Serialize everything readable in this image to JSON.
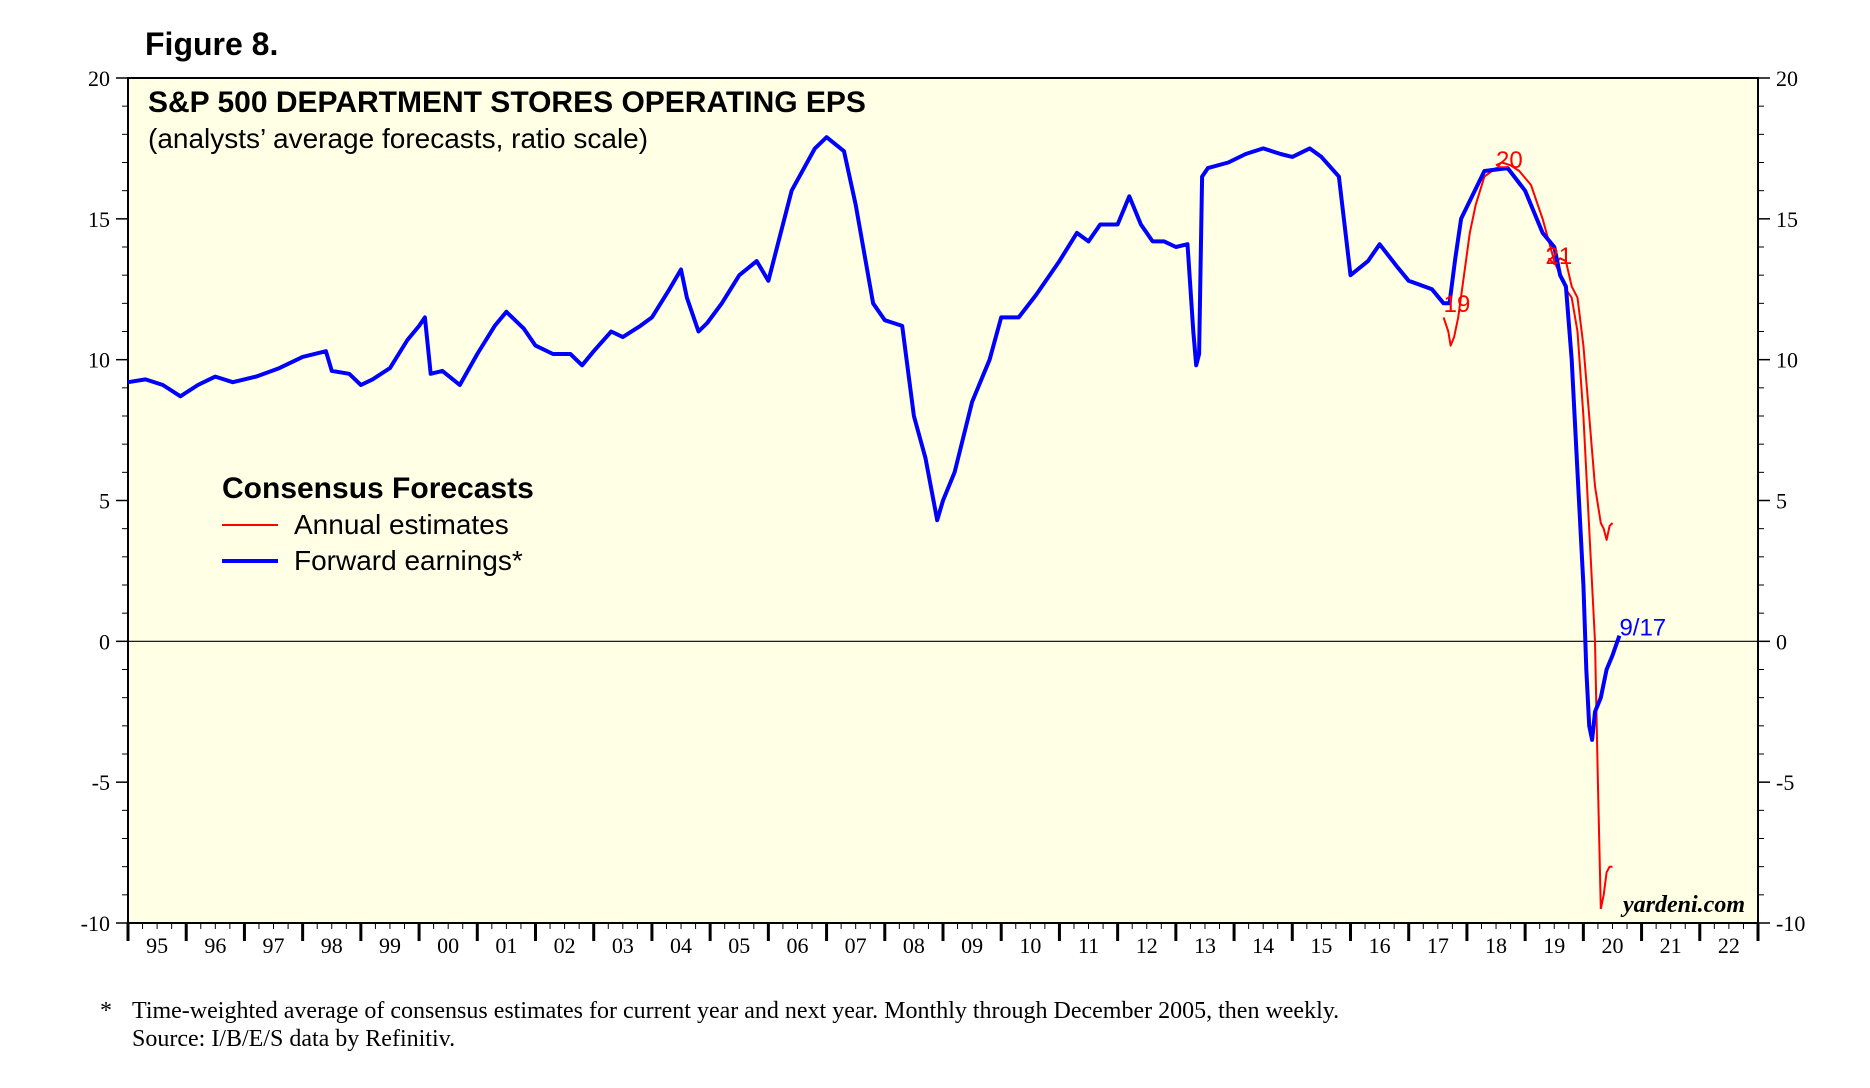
{
  "figure_label": "Figure 8.",
  "footnote": {
    "marker": "*",
    "line1": "Time-weighted average of consensus estimates for current year and next year. Monthly through December 2005, then weekly.",
    "line2": "Source: I/B/E/S data by Refinitiv."
  },
  "watermark": "yardeni.com",
  "colors": {
    "plot_background": "#FFFFE6",
    "annual": "#FF0000",
    "forward": "#0000FF",
    "zero_line": "#000000"
  },
  "chart_data": {
    "type": "line",
    "title": "S&P 500 DEPARTMENT STORES OPERATING EPS",
    "subtitle": "(analysts’ average forecasts, ratio scale)",
    "xlabel": "",
    "ylabel": "",
    "ylim": [
      -10,
      20
    ],
    "yticks": [
      -10,
      -5,
      0,
      5,
      10,
      15,
      20
    ],
    "xlim": [
      1995.0,
      2023.0
    ],
    "xtick_labels": [
      "95",
      "96",
      "97",
      "98",
      "99",
      "00",
      "01",
      "02",
      "03",
      "04",
      "05",
      "06",
      "07",
      "08",
      "09",
      "10",
      "11",
      "12",
      "13",
      "14",
      "15",
      "16",
      "17",
      "18",
      "19",
      "20",
      "21",
      "22"
    ],
    "grid": false,
    "legend": {
      "title": "Consensus Forecasts",
      "placement": "middle-left",
      "entries": [
        "Annual estimates",
        "Forward earnings*"
      ]
    },
    "annotations": [
      {
        "text": "19",
        "x": 2017.6,
        "y": 11.7,
        "color": "#FF0000"
      },
      {
        "text": "20",
        "x": 2018.5,
        "y": 16.8,
        "color": "#FF0000"
      },
      {
        "text": "21",
        "x": 2019.35,
        "y": 13.4,
        "color": "#FF0000"
      },
      {
        "text": "9/17",
        "x": 2020.62,
        "y": 0.2,
        "color": "#0000FF"
      }
    ],
    "series": [
      {
        "name": "Forward earnings*",
        "color": "#0000FF",
        "x": [
          1995.0,
          1995.3,
          1995.6,
          1995.9,
          1996.2,
          1996.5,
          1996.8,
          1997.2,
          1997.6,
          1998.0,
          1998.4,
          1998.5,
          1998.8,
          1999.0,
          1999.2,
          1999.5,
          1999.8,
          2000.0,
          2000.1,
          2000.2,
          2000.4,
          2000.7,
          2001.0,
          2001.3,
          2001.5,
          2001.8,
          2002.0,
          2002.3,
          2002.6,
          2002.8,
          2003.0,
          2003.3,
          2003.5,
          2003.8,
          2004.0,
          2004.3,
          2004.5,
          2004.6,
          2004.8,
          2004.95,
          2005.2,
          2005.5,
          2005.8,
          2006.0,
          2006.4,
          2006.8,
          2007.0,
          2007.3,
          2007.5,
          2007.8,
          2008.0,
          2008.3,
          2008.5,
          2008.7,
          2008.9,
          2009.0,
          2009.2,
          2009.5,
          2009.8,
          2010.0,
          2010.3,
          2010.6,
          2011.0,
          2011.3,
          2011.5,
          2011.7,
          2012.0,
          2012.2,
          2012.4,
          2012.6,
          2012.8,
          2013.0,
          2013.2,
          2013.3,
          2013.35,
          2013.4,
          2013.45,
          2013.55,
          2013.9,
          2014.2,
          2014.5,
          2014.8,
          2015.0,
          2015.3,
          2015.5,
          2015.8,
          2016.0,
          2016.3,
          2016.5,
          2016.8,
          2017.0,
          2017.4,
          2017.6,
          2017.7,
          2017.8,
          2017.9,
          2018.3,
          2018.7,
          2019.0,
          2019.3,
          2019.5,
          2019.6,
          2019.7,
          2019.8,
          2019.9,
          2020.0,
          2020.05,
          2020.1,
          2020.15,
          2020.2,
          2020.3,
          2020.4,
          2020.5,
          2020.55,
          2020.62
        ],
        "values": [
          9.2,
          9.3,
          9.1,
          8.7,
          9.1,
          9.4,
          9.2,
          9.4,
          9.7,
          10.1,
          10.3,
          9.6,
          9.5,
          9.1,
          9.3,
          9.7,
          10.7,
          11.2,
          11.5,
          9.5,
          9.6,
          9.1,
          10.2,
          11.2,
          11.7,
          11.1,
          10.5,
          10.2,
          10.2,
          9.8,
          10.3,
          11.0,
          10.8,
          11.2,
          11.5,
          12.5,
          13.2,
          12.2,
          11.0,
          11.3,
          12.0,
          13.0,
          13.5,
          12.8,
          16.0,
          17.5,
          17.9,
          17.4,
          15.5,
          12.0,
          11.4,
          11.2,
          8.0,
          6.5,
          4.3,
          5.0,
          6.0,
          8.5,
          10.0,
          11.5,
          11.5,
          12.3,
          13.5,
          14.5,
          14.2,
          14.8,
          14.8,
          15.8,
          14.8,
          14.2,
          14.2,
          14.0,
          14.1,
          11.0,
          9.8,
          10.2,
          16.5,
          16.8,
          17.0,
          17.3,
          17.5,
          17.3,
          17.2,
          17.5,
          17.2,
          16.5,
          13.0,
          13.5,
          14.1,
          13.3,
          12.8,
          12.5,
          12.0,
          12.0,
          13.6,
          15.0,
          16.7,
          16.8,
          16.0,
          14.5,
          14.0,
          13.0,
          12.6,
          10.0,
          6.0,
          2.0,
          -1.0,
          -3.0,
          -3.5,
          -2.5,
          -2.0,
          -1.0,
          -0.5,
          -0.2,
          0.2
        ]
      },
      {
        "name": "Annual estimates",
        "color": "#FF0000",
        "segments": [
          {
            "label": "19",
            "x": [
              2017.6,
              2017.68,
              2017.72,
              2017.78,
              2017.85,
              2017.95,
              2018.05,
              2018.15,
              2018.3,
              2018.5,
              2018.7,
              2018.9,
              2019.0
            ],
            "values": [
              11.5,
              11.0,
              10.5,
              10.8,
              11.5,
              13.0,
              14.5,
              15.5,
              16.5,
              16.8,
              16.8,
              16.2,
              16.0
            ]
          },
          {
            "label": "20",
            "x": [
              2018.5,
              2018.6,
              2018.75,
              2018.9,
              2019.1,
              2019.3,
              2019.5,
              2019.6,
              2019.7,
              2019.8,
              2019.9,
              2020.0,
              2020.1,
              2020.2,
              2020.25,
              2020.3
            ],
            "values": [
              16.9,
              17.0,
              16.9,
              16.7,
              16.2,
              15.0,
              13.5,
              13.0,
              12.5,
              12.2,
              11.0,
              8.0,
              4.0,
              0.0,
              -5.0,
              -9.5
            ]
          },
          {
            "label": "2020b",
            "x": [
              2020.3,
              2020.35,
              2020.4,
              2020.45,
              2020.5
            ],
            "values": [
              -9.5,
              -9.0,
              -8.2,
              -8.0,
              -8.0
            ]
          },
          {
            "label": "21",
            "x": [
              2019.4,
              2019.5,
              2019.6,
              2019.7,
              2019.8,
              2019.9,
              2020.0,
              2020.1,
              2020.2,
              2020.3,
              2020.35,
              2020.4,
              2020.45,
              2020.5
            ],
            "values": [
              13.6,
              13.4,
              13.6,
              13.5,
              12.6,
              12.2,
              10.5,
              8.0,
              5.5,
              4.2,
              4.0,
              3.6,
              4.1,
              4.2
            ]
          }
        ]
      }
    ]
  }
}
